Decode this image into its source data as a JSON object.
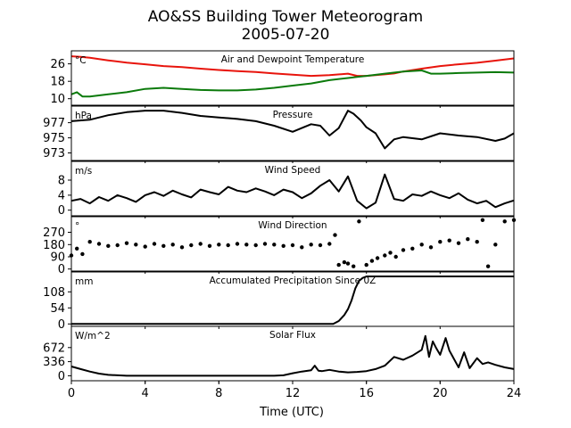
{
  "figure": {
    "title_line1": "AO&SS Building Tower Meteorogram",
    "title_line2": "2005-07-20",
    "xlabel": "Time (UTC)",
    "xticks": [
      0,
      4,
      8,
      12,
      16,
      20,
      24
    ],
    "xlim": [
      0,
      24
    ]
  },
  "chart_data": [
    {
      "type": "line",
      "title": "Air and Dewpoint Temperature",
      "unit": "°C",
      "ylim": [
        7,
        32
      ],
      "yticks": [
        10,
        18,
        26
      ],
      "series": [
        {
          "color": "#e8140c",
          "x": [
            0,
            0.5,
            1,
            2,
            3,
            4,
            5,
            6,
            7,
            8,
            9,
            10,
            11,
            12,
            13,
            14,
            15,
            15.5,
            16,
            16.5,
            17,
            17.5,
            18,
            19,
            20,
            21,
            22,
            23,
            24
          ],
          "y": [
            29.5,
            29.2,
            28.8,
            27.6,
            26.6,
            25.8,
            25,
            24.5,
            23.8,
            23.2,
            22.7,
            22.3,
            21.6,
            21,
            20.5,
            20.8,
            21.5,
            20.5,
            20.5,
            20.8,
            21.2,
            21.6,
            22.5,
            23.8,
            25,
            25.8,
            26.5,
            27.5,
            28.5
          ]
        },
        {
          "color": "#0b7a0b",
          "x": [
            0,
            0.3,
            0.6,
            1,
            2,
            3,
            4,
            5,
            6,
            7,
            8,
            9,
            10,
            11,
            12,
            13,
            14,
            15,
            15.5,
            16,
            17,
            18,
            19,
            19.5,
            20,
            21,
            22,
            23,
            24
          ],
          "y": [
            12,
            13,
            11,
            11,
            12,
            13,
            14.5,
            15,
            14.5,
            14,
            13.8,
            13.8,
            14.2,
            15,
            16,
            17,
            18.5,
            19.5,
            20,
            20.5,
            21.5,
            22.5,
            23,
            21.5,
            21.5,
            21.8,
            22,
            22.2,
            22
          ]
        }
      ]
    },
    {
      "type": "line",
      "title": "Pressure",
      "unit": "hPa",
      "ylim": [
        972,
        979.2
      ],
      "yticks": [
        973,
        975,
        977
      ],
      "series": [
        {
          "color": "#000000",
          "x": [
            0,
            1,
            2,
            3,
            4,
            5,
            6,
            7,
            8,
            9,
            10,
            11,
            12,
            12.5,
            13,
            13.5,
            14,
            14.5,
            15,
            15.3,
            15.7,
            16,
            16.5,
            17,
            17.5,
            18,
            19,
            20,
            21,
            22,
            23,
            23.5,
            24
          ],
          "y": [
            977.2,
            977.4,
            978,
            978.4,
            978.6,
            978.6,
            978.3,
            977.9,
            977.7,
            977.5,
            977.2,
            976.6,
            975.8,
            976.3,
            976.8,
            976.6,
            975.3,
            976.3,
            978.6,
            978.2,
            977.3,
            976.4,
            975.6,
            973.6,
            974.8,
            975.1,
            974.8,
            975.6,
            975.3,
            975.1,
            974.6,
            974.9,
            975.6
          ]
        }
      ]
    },
    {
      "type": "line",
      "title": "Wind Speed",
      "unit": "m/s",
      "ylim": [
        -1.5,
        13
      ],
      "yticks": [
        0,
        4,
        8
      ],
      "series": [
        {
          "color": "#000000",
          "x": [
            0,
            0.5,
            1,
            1.5,
            2,
            2.5,
            3,
            3.5,
            4,
            4.5,
            5,
            5.5,
            6,
            6.5,
            7,
            7.5,
            8,
            8.5,
            9,
            9.5,
            10,
            10.5,
            11,
            11.5,
            12,
            12.5,
            13,
            13.5,
            14,
            14.5,
            15,
            15.5,
            16,
            16.5,
            17,
            17.5,
            18,
            18.5,
            19,
            19.5,
            20,
            20.5,
            21,
            21.5,
            22,
            22.5,
            23,
            23.5,
            24
          ],
          "y": [
            2.5,
            3,
            1.8,
            3.5,
            2.5,
            4,
            3.2,
            2.2,
            4,
            4.8,
            3.8,
            5.2,
            4.2,
            3.4,
            5.5,
            4.8,
            4.2,
            6.2,
            5.2,
            4.8,
            5.8,
            5,
            4,
            5.5,
            4.8,
            3.2,
            4.5,
            6.5,
            8,
            5,
            9,
            2.5,
            0.5,
            2,
            9.5,
            3,
            2.5,
            4.2,
            3.8,
            5,
            4,
            3.2,
            4.5,
            2.8,
            1.8,
            2.5,
            0.8,
            1.8,
            2.6
          ]
        }
      ]
    },
    {
      "type": "scatter",
      "title": "Wind Direction",
      "unit": "°",
      "ylim": [
        -15,
        385
      ],
      "yticks": [
        0,
        90,
        180,
        270
      ],
      "series": [
        {
          "color": "#000000",
          "x": [
            0,
            0.3,
            0.6,
            1,
            1.5,
            2,
            2.5,
            3,
            3.5,
            4,
            4.5,
            5,
            5.5,
            6,
            6.5,
            7,
            7.5,
            8,
            8.5,
            9,
            9.5,
            10,
            10.5,
            11,
            11.5,
            12,
            12.5,
            13,
            13.5,
            14,
            14.3,
            14.5,
            14.8,
            15,
            15.3,
            15.6,
            16,
            16.3,
            16.6,
            17,
            17.3,
            17.6,
            18,
            18.5,
            19,
            19.5,
            20,
            20.5,
            21,
            21.5,
            22,
            22.3,
            22.6,
            23,
            23.5,
            24
          ],
          "y": [
            100,
            150,
            110,
            200,
            185,
            170,
            175,
            190,
            180,
            165,
            185,
            170,
            180,
            160,
            175,
            185,
            170,
            180,
            175,
            185,
            180,
            175,
            185,
            180,
            170,
            175,
            160,
            180,
            175,
            185,
            250,
            30,
            50,
            40,
            20,
            350,
            30,
            60,
            80,
            100,
            120,
            90,
            140,
            150,
            180,
            160,
            200,
            210,
            190,
            220,
            200,
            360,
            20,
            180,
            350,
            360
          ]
        }
      ]
    },
    {
      "type": "line",
      "title": "Accumulated Precipitation Since 0Z",
      "unit": "mm",
      "ylim": [
        -8,
        175
      ],
      "yticks": [
        0,
        54,
        108
      ],
      "series": [
        {
          "color": "#000000",
          "x": [
            0,
            14.2,
            14.5,
            14.8,
            15,
            15.2,
            15.4,
            15.6,
            15.8,
            16,
            24
          ],
          "y": [
            0,
            0,
            10,
            30,
            50,
            80,
            120,
            145,
            155,
            160,
            160
          ]
        }
      ]
    },
    {
      "type": "line",
      "title": "Solar Flux",
      "unit": "W/m^2",
      "ylim": [
        -120,
        1180
      ],
      "yticks": [
        0,
        336,
        672
      ],
      "series": [
        {
          "color": "#000000",
          "x": [
            0,
            0.5,
            1,
            1.5,
            2,
            3,
            4,
            5,
            6,
            7,
            8,
            9,
            10,
            11,
            11.5,
            12,
            12.5,
            13,
            13.2,
            13.4,
            13.6,
            14,
            14.5,
            15,
            15.5,
            16,
            16.5,
            17,
            17.5,
            18,
            18.5,
            19,
            19.2,
            19.4,
            19.6,
            19.8,
            20,
            20.3,
            20.5,
            21,
            21.3,
            21.6,
            22,
            22.3,
            22.6,
            23,
            23.5,
            24
          ],
          "y": [
            220,
            160,
            100,
            50,
            20,
            0,
            0,
            0,
            0,
            0,
            0,
            0,
            0,
            0,
            10,
            60,
            100,
            130,
            240,
            120,
            110,
            140,
            100,
            80,
            90,
            110,
            160,
            240,
            450,
            380,
            480,
            620,
            950,
            450,
            820,
            650,
            500,
            900,
            600,
            200,
            560,
            180,
            420,
            280,
            320,
            260,
            200,
            160
          ]
        }
      ]
    }
  ]
}
